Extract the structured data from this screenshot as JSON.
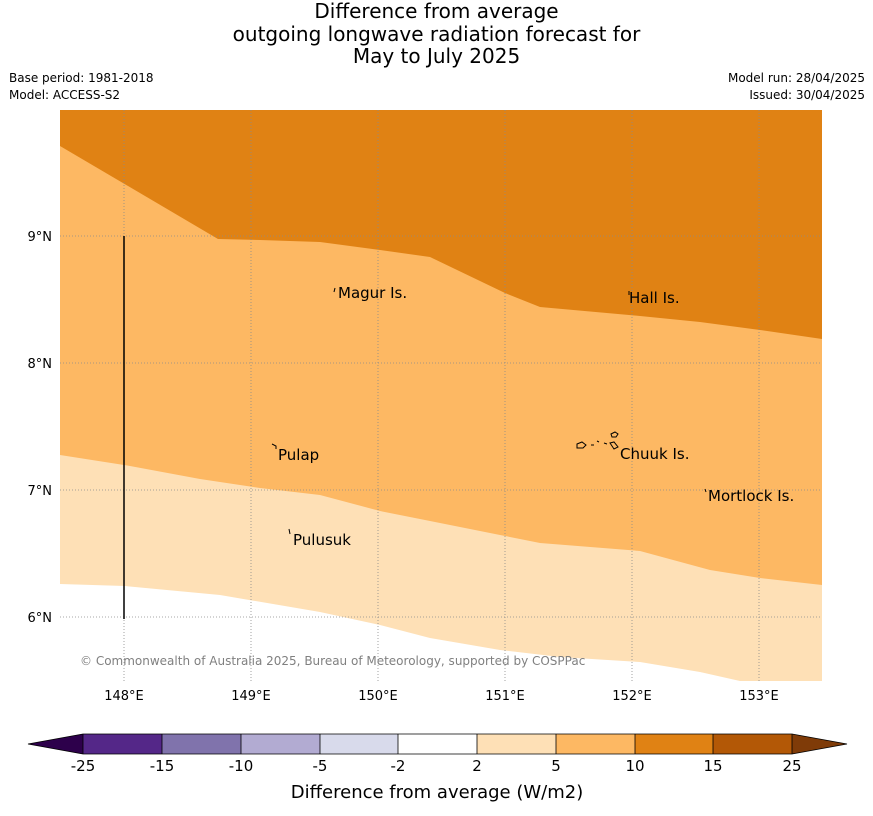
{
  "title": {
    "line1": "Difference from average",
    "line2": "outgoing longwave radiation forecast for",
    "line3": "May to July 2025"
  },
  "meta": {
    "base_period": "Base period: 1981-2018",
    "model": "Model: ACCESS-S2",
    "model_run": "Model run: 28/04/2025",
    "issued": "Issued: 30/04/2025"
  },
  "map": {
    "lon_ticks": [
      "148°E",
      "149°E",
      "150°E",
      "151°E",
      "152°E",
      "153°E"
    ],
    "lat_ticks": [
      "9°N",
      "8°N",
      "7°N",
      "6°N"
    ],
    "places": [
      "Magur Is.",
      "Hall Is.",
      "Pulap",
      "Chuuk Is.",
      "Mortlock Is.",
      "Pulusuk"
    ],
    "copyright": "© Commonwealth of Australia 2025, Bureau of Meteorology, supported by COSPPac",
    "colors": {
      "band_10_15": "#e08214",
      "band_5_10": "#fdb863",
      "band_2_5": "#fee0b6",
      "band_neutral": "#ffffff",
      "coast": "#000000"
    }
  },
  "colorbar": {
    "ticks": [
      "-25",
      "-15",
      "-10",
      "-5",
      "-2",
      "2",
      "5",
      "10",
      "15",
      "25"
    ],
    "colors": [
      "#2d004b",
      "#542788",
      "#8073ac",
      "#b2abd2",
      "#d8daeb",
      "#ffffff",
      "#fee0b6",
      "#fdb863",
      "#e08214",
      "#b35806",
      "#7f3b08"
    ],
    "label": "Difference from average (W/m2)"
  }
}
